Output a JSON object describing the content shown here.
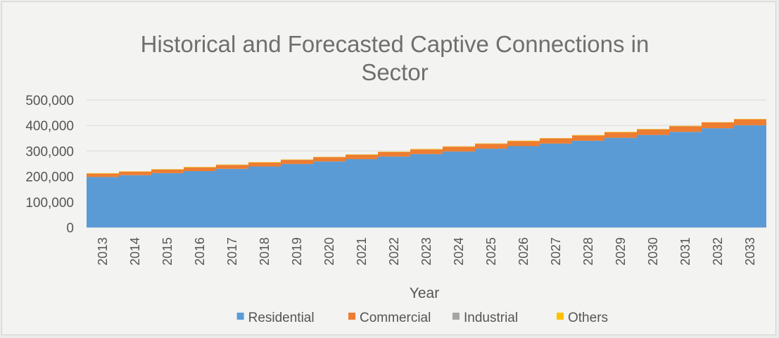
{
  "chart_data": {
    "type": "area",
    "stacked": true,
    "title": "Historical and Forecasted Captive Connections in Sector",
    "title_lines": [
      "Historical and Forecasted Captive Connections in",
      "Sector"
    ],
    "xlabel": "Year",
    "ylabel": "",
    "ylim": [
      0,
      500000
    ],
    "y_ticks": [
      0,
      100000,
      200000,
      300000,
      400000,
      500000
    ],
    "y_tick_labels": [
      "0",
      "100,000",
      "200,000",
      "300,000",
      "400,000",
      "500,000"
    ],
    "grid": true,
    "legend_position": "bottom",
    "categories": [
      "2013",
      "2014",
      "2015",
      "2016",
      "2017",
      "2018",
      "2019",
      "2020",
      "2021",
      "2022",
      "2023",
      "2024",
      "2025",
      "2026",
      "2027",
      "2028",
      "2029",
      "2030",
      "2031",
      "2032",
      "2033"
    ],
    "series": [
      {
        "name": "Residential",
        "color": "#5b9bd5",
        "values": [
          198000,
          205000,
          213000,
          221000,
          230000,
          239000,
          249000,
          259000,
          268000,
          278000,
          288000,
          298000,
          309000,
          319000,
          329000,
          340000,
          352000,
          363000,
          375000,
          389000,
          401000
        ]
      },
      {
        "name": "Commercial",
        "color": "#ed7d31",
        "values": [
          13000,
          13500,
          14000,
          14500,
          15000,
          15500,
          16000,
          16500,
          17000,
          17500,
          18000,
          18500,
          19000,
          19500,
          20000,
          20500,
          21000,
          21500,
          22000,
          22500,
          23000
        ]
      },
      {
        "name": "Industrial",
        "color": "#a5a5a5",
        "values": [
          400,
          400,
          400,
          400,
          400,
          400,
          400,
          400,
          400,
          400,
          400,
          400,
          400,
          400,
          400,
          400,
          400,
          400,
          400,
          400,
          400
        ]
      },
      {
        "name": "Others",
        "color": "#ffc000",
        "values": [
          1500,
          1500,
          1500,
          1500,
          1500,
          1500,
          1500,
          1500,
          1500,
          1500,
          1500,
          1500,
          1500,
          1500,
          1500,
          1500,
          1500,
          1500,
          1500,
          1500,
          1500
        ]
      }
    ]
  }
}
